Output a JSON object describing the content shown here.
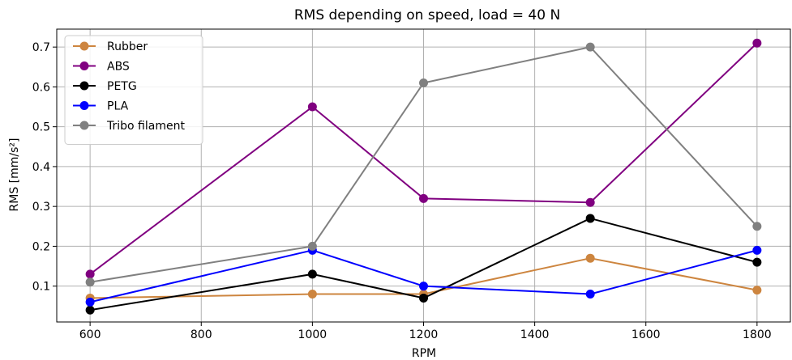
{
  "chart_data": {
    "type": "line",
    "title": "RMS depending on speed, load = 40 N",
    "xlabel": "RPM",
    "ylabel": "RMS [mm/s²]",
    "x": [
      600,
      1000,
      1200,
      1500,
      1800
    ],
    "xlim": [
      540,
      1860
    ],
    "ylim": [
      0.01,
      0.745
    ],
    "xticks": [
      600,
      800,
      1000,
      1200,
      1400,
      1600,
      1800
    ],
    "xtick_labels": [
      "600",
      "800",
      "1000",
      "1200",
      "1400",
      "1600",
      "1800"
    ],
    "yticks": [
      0.1,
      0.2,
      0.3,
      0.4,
      0.5,
      0.6,
      0.7
    ],
    "ytick_labels": [
      "0.1",
      "0.2",
      "0.3",
      "0.4",
      "0.5",
      "0.6",
      "0.7"
    ],
    "grid": true,
    "legend_position": "top-left",
    "series": [
      {
        "name": "Rubber",
        "color": "#cd853f",
        "values": [
          0.07,
          0.08,
          0.08,
          0.17,
          0.09
        ]
      },
      {
        "name": "ABS",
        "color": "#800080",
        "values": [
          0.13,
          0.55,
          0.32,
          0.31,
          0.71
        ]
      },
      {
        "name": "PETG",
        "color": "#000000",
        "values": [
          0.04,
          0.13,
          0.07,
          0.27,
          0.16
        ]
      },
      {
        "name": "PLA",
        "color": "#0000ff",
        "values": [
          0.06,
          0.19,
          0.1,
          0.08,
          0.19
        ]
      },
      {
        "name": "Tribo filament",
        "color": "#808080",
        "values": [
          0.11,
          0.2,
          0.61,
          0.7,
          0.25
        ]
      }
    ]
  }
}
